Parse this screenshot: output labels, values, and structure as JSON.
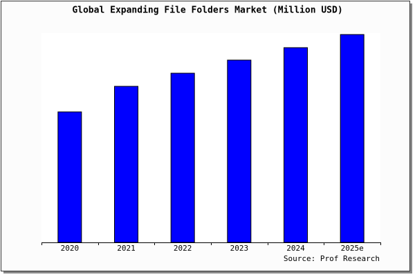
{
  "chart_data": {
    "type": "bar",
    "title": "Global Expanding File Folders Market (Million USD)",
    "categories": [
      "2020",
      "2021",
      "2022",
      "2023",
      "2024",
      "2025e"
    ],
    "values": [
      189,
      226,
      245,
      264,
      282,
      301
    ],
    "color": "#0000ff",
    "ylim": [
      0,
      303
    ],
    "source": "Source: Prof Research"
  }
}
